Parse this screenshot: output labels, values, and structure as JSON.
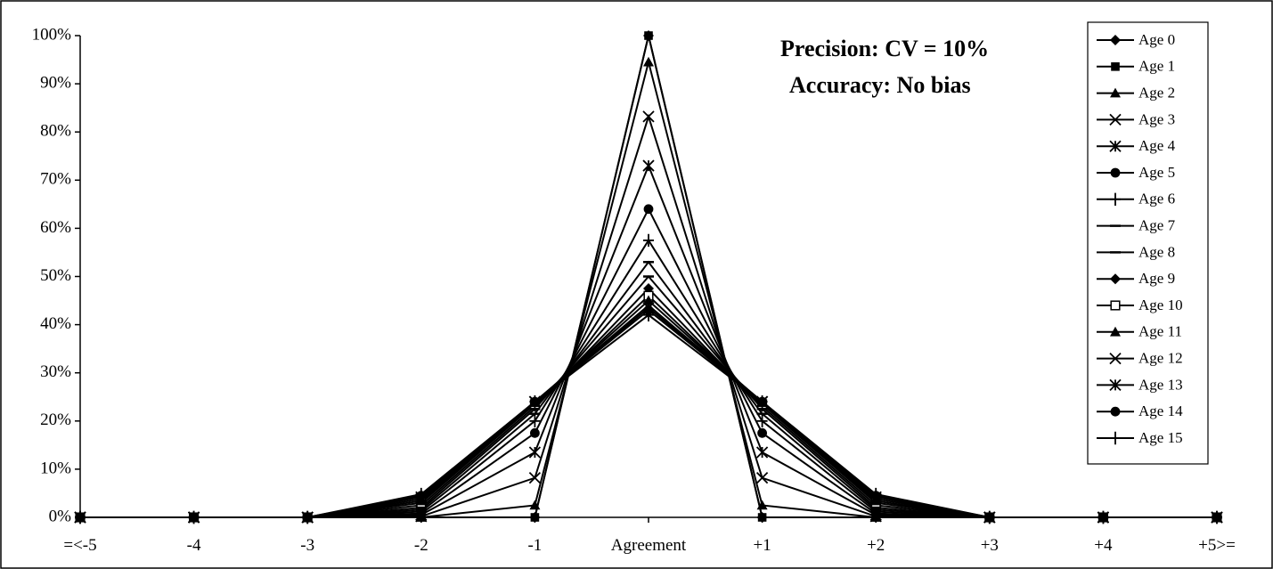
{
  "chart_data": {
    "type": "line",
    "title_lines": [
      "Precision: CV = 10%",
      "Accuracy: No bias"
    ],
    "categories": [
      "=<-5",
      "-4",
      "-3",
      "-2",
      "-1",
      "Agreement",
      "+1",
      "+2",
      "+3",
      "+4",
      "+5>="
    ],
    "y_ticks": [
      "0%",
      "10%",
      "20%",
      "30%",
      "40%",
      "50%",
      "60%",
      "70%",
      "80%",
      "90%",
      "100%"
    ],
    "ylim": [
      0,
      100
    ],
    "y_unit": "%",
    "grid": false,
    "legend_position": "right",
    "series": [
      {
        "name": "Age 0",
        "marker": "diamond",
        "values": [
          0,
          0,
          0,
          0,
          0,
          100,
          0,
          0,
          0,
          0,
          0
        ]
      },
      {
        "name": "Age 1",
        "marker": "square",
        "values": [
          0,
          0,
          0,
          0,
          0,
          100,
          0,
          0,
          0,
          0,
          0
        ]
      },
      {
        "name": "Age 2",
        "marker": "triangle",
        "values": [
          0,
          0,
          0,
          0,
          2.5,
          94.5,
          2.5,
          0,
          0,
          0,
          0
        ]
      },
      {
        "name": "Age 3",
        "marker": "x",
        "values": [
          0,
          0,
          0,
          0.2,
          8.2,
          83.2,
          8.2,
          0.2,
          0,
          0,
          0
        ]
      },
      {
        "name": "Age 4",
        "marker": "asterisk",
        "values": [
          0,
          0,
          0,
          0.5,
          13.5,
          73,
          13.5,
          0.5,
          0,
          0,
          0
        ]
      },
      {
        "name": "Age 5",
        "marker": "circle",
        "values": [
          0,
          0,
          0,
          0.8,
          17.5,
          64,
          17.5,
          0.8,
          0,
          0,
          0
        ]
      },
      {
        "name": "Age 6",
        "marker": "plus",
        "values": [
          0,
          0,
          0,
          1.2,
          20,
          57.5,
          20,
          1.2,
          0,
          0,
          0
        ]
      },
      {
        "name": "Age 7",
        "marker": "dash",
        "values": [
          0,
          0,
          0,
          1.6,
          21.5,
          53,
          21.5,
          1.6,
          0,
          0,
          0
        ]
      },
      {
        "name": "Age 8",
        "marker": "dash",
        "values": [
          0,
          0,
          0,
          2.0,
          22.5,
          50,
          22.5,
          2.0,
          0,
          0,
          0
        ]
      },
      {
        "name": "Age 9",
        "marker": "diamond",
        "values": [
          0,
          0,
          0,
          2.5,
          23,
          47.5,
          23,
          2.5,
          0,
          0,
          0
        ]
      },
      {
        "name": "Age 10",
        "marker": "square-open",
        "values": [
          0,
          0,
          0,
          3.0,
          23.5,
          46,
          23.5,
          3.0,
          0,
          0,
          0
        ]
      },
      {
        "name": "Age 11",
        "marker": "triangle",
        "values": [
          0,
          0,
          0,
          3.4,
          23.8,
          45,
          23.8,
          3.4,
          0,
          0,
          0
        ]
      },
      {
        "name": "Age 12",
        "marker": "x",
        "values": [
          0,
          0,
          0,
          3.8,
          24,
          44,
          24,
          3.8,
          0,
          0,
          0
        ]
      },
      {
        "name": "Age 13",
        "marker": "asterisk",
        "values": [
          0,
          0,
          0,
          4.2,
          24,
          43.5,
          24,
          4.2,
          0,
          0,
          0
        ]
      },
      {
        "name": "Age 14",
        "marker": "circle",
        "values": [
          0,
          0,
          0,
          4.5,
          24,
          43,
          24,
          4.5,
          0,
          0,
          0
        ]
      },
      {
        "name": "Age 15",
        "marker": "plus",
        "values": [
          0,
          0,
          0,
          4.8,
          24,
          42,
          24,
          4.8,
          0,
          0,
          0
        ]
      }
    ]
  }
}
